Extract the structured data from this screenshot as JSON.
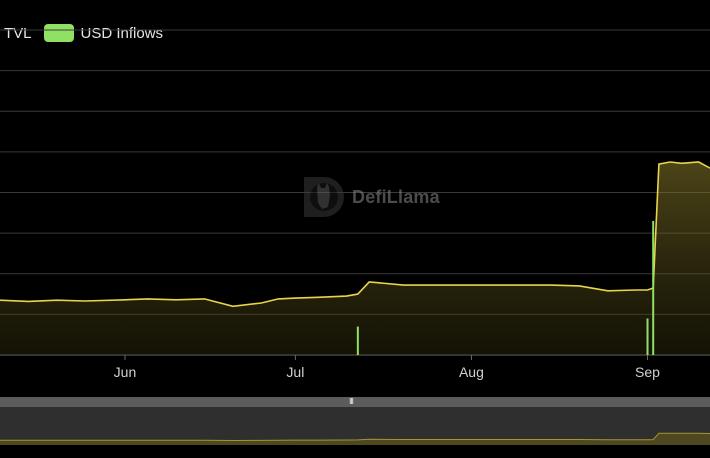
{
  "legend": [
    {
      "label": "TVL",
      "color": "#e8d54a"
    },
    {
      "label": "USD Inflows",
      "color": "#8fe063"
    }
  ],
  "watermark": {
    "text": "DefiLlama",
    "icon": "llama-logo-icon"
  },
  "zoom": {
    "handle_icon": "grip-icon",
    "handle_glyph": "III"
  },
  "chart_data": {
    "type": "line",
    "title": "",
    "xlabel": "",
    "ylabel": "",
    "x_tick_labels": [
      "Jun",
      "Jul",
      "Aug",
      "Sep"
    ],
    "grid": true,
    "legend_position": "top-left",
    "ylim": [
      0,
      8
    ],
    "series": [
      {
        "name": "TVL",
        "type": "area",
        "color": "#e8d54a",
        "x": [
          "May 10",
          "May 15",
          "May 20",
          "May 25",
          "Jun 1",
          "Jun 5",
          "Jun 10",
          "Jun 15",
          "Jun 20",
          "Jun 25",
          "Jun 28",
          "Jul 1",
          "Jul 5",
          "Jul 10",
          "Jul 12",
          "Jul 14",
          "Jul 20",
          "Jul 25",
          "Aug 1",
          "Aug 10",
          "Aug 15",
          "Aug 20",
          "Aug 25",
          "Aug 30",
          "Sep 1",
          "Sep 2",
          "Sep 3",
          "Sep 5",
          "Sep 7",
          "Sep 10",
          "Sep 12"
        ],
        "values": [
          1.35,
          1.32,
          1.35,
          1.33,
          1.36,
          1.38,
          1.36,
          1.38,
          1.2,
          1.28,
          1.38,
          1.4,
          1.42,
          1.45,
          1.5,
          1.8,
          1.72,
          1.72,
          1.72,
          1.72,
          1.72,
          1.7,
          1.58,
          1.6,
          1.6,
          1.65,
          4.7,
          4.75,
          4.72,
          4.75,
          4.6
        ]
      },
      {
        "name": "USD Inflows",
        "type": "bar",
        "color": "#8fe063",
        "x": [
          "Jul 12",
          "Sep 1",
          "Sep 2"
        ],
        "values": [
          0.7,
          0.9,
          3.3
        ]
      }
    ]
  }
}
